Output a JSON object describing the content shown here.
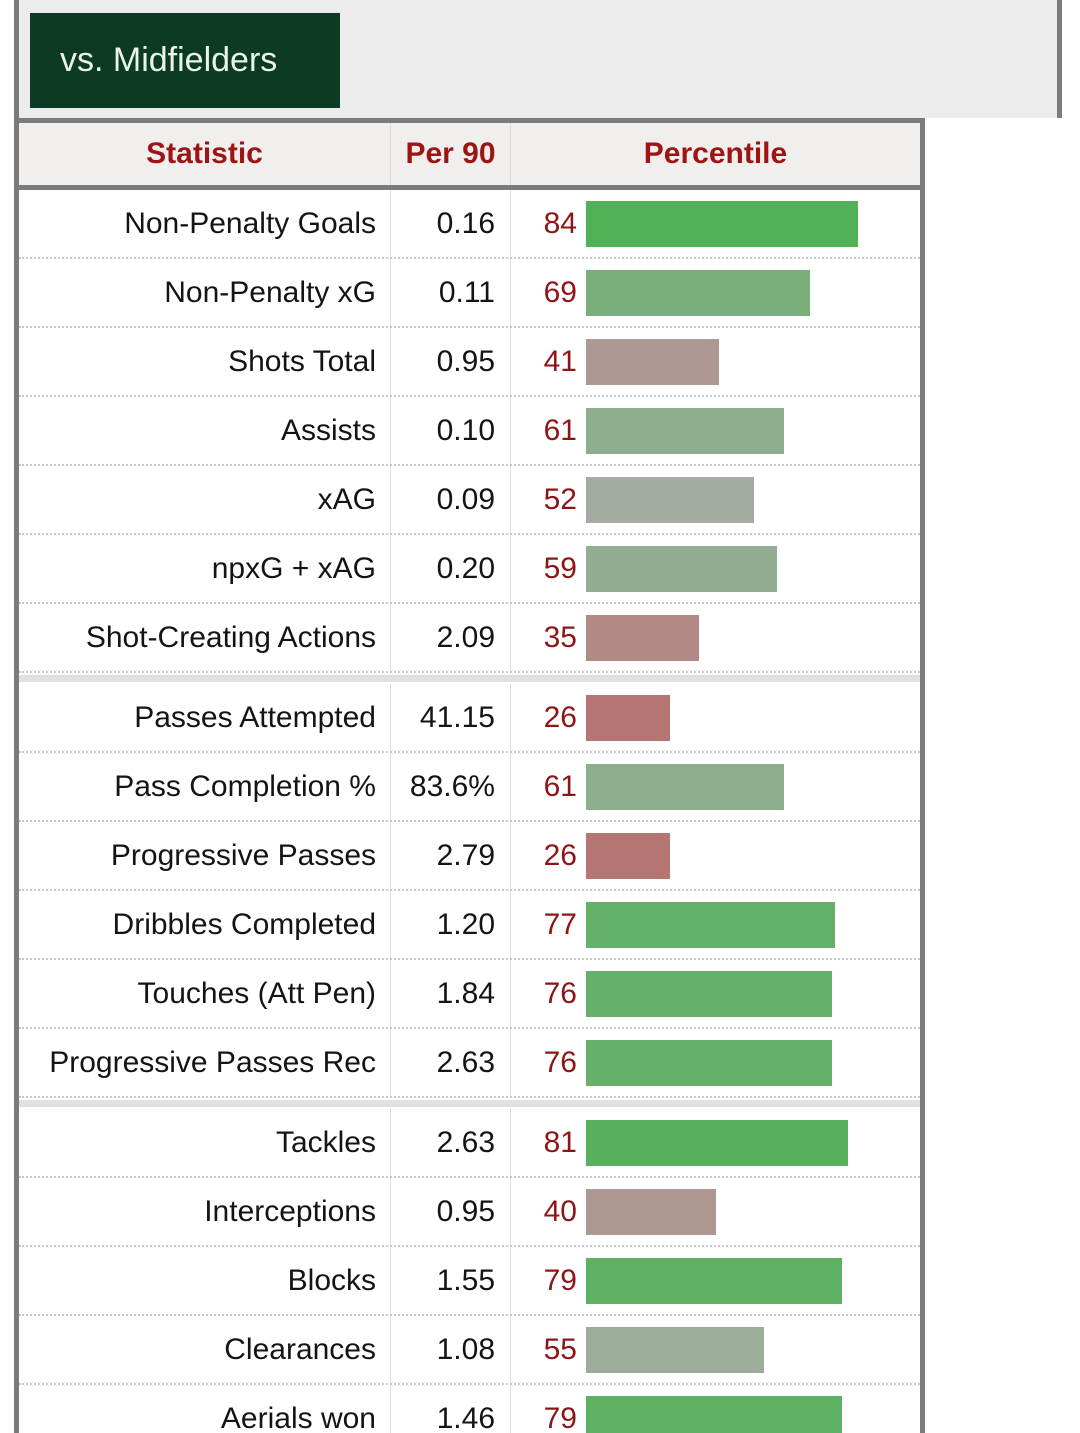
{
  "title": {
    "label": "vs. Midfielders"
  },
  "table": {
    "headers": {
      "statistic": "Statistic",
      "per90": "Per 90",
      "percentile": "Percentile"
    },
    "groups": [
      {
        "rows": [
          {
            "stat": "Non-Penalty Goals",
            "per90": "0.16",
            "pct": 84
          },
          {
            "stat": "Non-Penalty xG",
            "per90": "0.11",
            "pct": 69
          },
          {
            "stat": "Shots Total",
            "per90": "0.95",
            "pct": 41
          },
          {
            "stat": "Assists",
            "per90": "0.10",
            "pct": 61
          },
          {
            "stat": "xAG",
            "per90": "0.09",
            "pct": 52
          },
          {
            "stat": "npxG + xAG",
            "per90": "0.20",
            "pct": 59
          },
          {
            "stat": "Shot-Creating Actions",
            "per90": "2.09",
            "pct": 35
          }
        ]
      },
      {
        "rows": [
          {
            "stat": "Passes Attempted",
            "per90": "41.15",
            "pct": 26
          },
          {
            "stat": "Pass Completion %",
            "per90": "83.6%",
            "pct": 61
          },
          {
            "stat": "Progressive Passes",
            "per90": "2.79",
            "pct": 26
          },
          {
            "stat": "Dribbles Completed",
            "per90": "1.20",
            "pct": 77
          },
          {
            "stat": "Touches (Att Pen)",
            "per90": "1.84",
            "pct": 76
          },
          {
            "stat": "Progressive Passes Rec",
            "per90": "2.63",
            "pct": 76
          }
        ]
      },
      {
        "rows": [
          {
            "stat": "Tackles",
            "per90": "2.63",
            "pct": 81
          },
          {
            "stat": "Interceptions",
            "per90": "0.95",
            "pct": 40
          },
          {
            "stat": "Blocks",
            "per90": "1.55",
            "pct": 79
          },
          {
            "stat": "Clearances",
            "per90": "1.08",
            "pct": 55
          },
          {
            "stat": "Aerials won",
            "per90": "1.46",
            "pct": 79
          }
        ]
      }
    ]
  },
  "colors": {
    "accent_dark_green": "#0c3a23",
    "title_text": "#e9f4ec",
    "header_text_red": "#9c1414",
    "percentile_number_red": "#8e1515",
    "border_gray": "#7b7b7b",
    "scale_low_red": "#c23c3c",
    "scale_mid_gray": "#a9aca6",
    "scale_high_green": "#28b432"
  },
  "chart_data": {
    "type": "bar",
    "orientation": "horizontal",
    "title": "vs. Midfielders",
    "categories": [
      "Non-Penalty Goals",
      "Non-Penalty xG",
      "Shots Total",
      "Assists",
      "xAG",
      "npxG + xAG",
      "Shot-Creating Actions",
      "Passes Attempted",
      "Pass Completion %",
      "Progressive Passes",
      "Dribbles Completed",
      "Touches (Att Pen)",
      "Progressive Passes Rec",
      "Tackles",
      "Interceptions",
      "Blocks",
      "Clearances",
      "Aerials won"
    ],
    "series": [
      {
        "name": "Per 90",
        "values": [
          0.16,
          0.11,
          0.95,
          0.1,
          0.09,
          0.2,
          2.09,
          41.15,
          "83.6%",
          2.79,
          1.2,
          1.84,
          2.63,
          2.63,
          0.95,
          1.55,
          1.08,
          1.46
        ]
      },
      {
        "name": "Percentile",
        "values": [
          84,
          69,
          41,
          61,
          52,
          59,
          35,
          26,
          61,
          26,
          77,
          76,
          76,
          81,
          40,
          79,
          55,
          79
        ]
      }
    ],
    "xlim": [
      0,
      100
    ],
    "group_breaks_after": [
      "Shot-Creating Actions",
      "Progressive Passes Rec"
    ],
    "legend_position": "none",
    "grid": false,
    "bar_color_rule": "interpolated red (low) -> gray (50) -> green (high)"
  }
}
